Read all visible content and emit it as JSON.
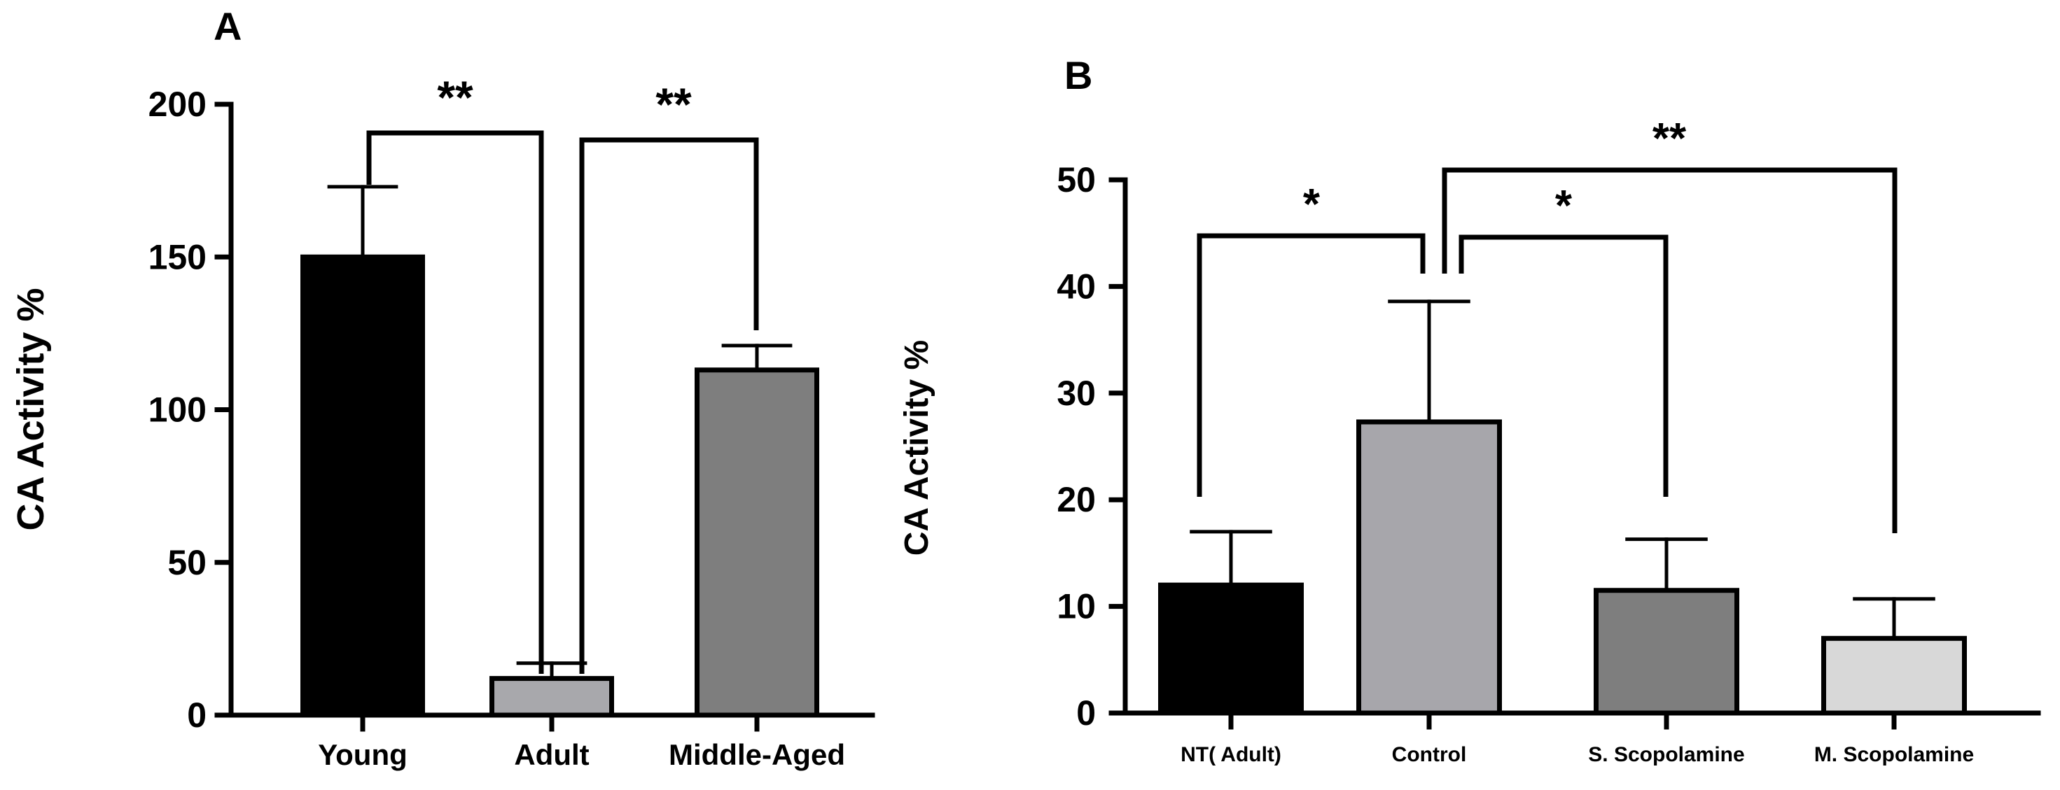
{
  "chart_data": [
    {
      "panel": "A",
      "type": "bar",
      "title": "",
      "xlabel": "",
      "ylabel": "CA Activity %",
      "ylim": [
        0,
        200
      ],
      "yticks": [
        0,
        50,
        100,
        150,
        200
      ],
      "categories": [
        "Young",
        "Adult",
        "Middle-Aged"
      ],
      "values": [
        150,
        12,
        113
      ],
      "errors": [
        23,
        5,
        8
      ],
      "colors": [
        "#000000",
        "#a8a8ac",
        "#7e7e7e"
      ],
      "significance": [
        {
          "from": "Young",
          "to": "Adult",
          "label": "**"
        },
        {
          "from": "Adult",
          "to": "Middle-Aged",
          "label": "**"
        }
      ]
    },
    {
      "panel": "B",
      "type": "bar",
      "title": "",
      "xlabel": "",
      "ylabel": "CA  Activity %",
      "ylim": [
        0,
        50
      ],
      "yticks": [
        0,
        10,
        20,
        30,
        40,
        50
      ],
      "categories": [
        "NT( Adult)",
        "Control",
        "S. Scopolamine",
        "M. Scopolamine"
      ],
      "values": [
        12,
        27.3,
        11.5,
        7
      ],
      "errors": [
        5,
        11.3,
        4.8,
        3.7
      ],
      "colors": [
        "#000000",
        "#a7a6ab",
        "#7e7e7e",
        "#d8d8d8"
      ],
      "significance": [
        {
          "from": "NT( Adult)",
          "to": "Control",
          "label": "*"
        },
        {
          "from": "Control",
          "to": "S. Scopolamine",
          "label": "*"
        },
        {
          "from": "Control",
          "to": "M. Scopolamine",
          "label": "**"
        }
      ]
    }
  ]
}
